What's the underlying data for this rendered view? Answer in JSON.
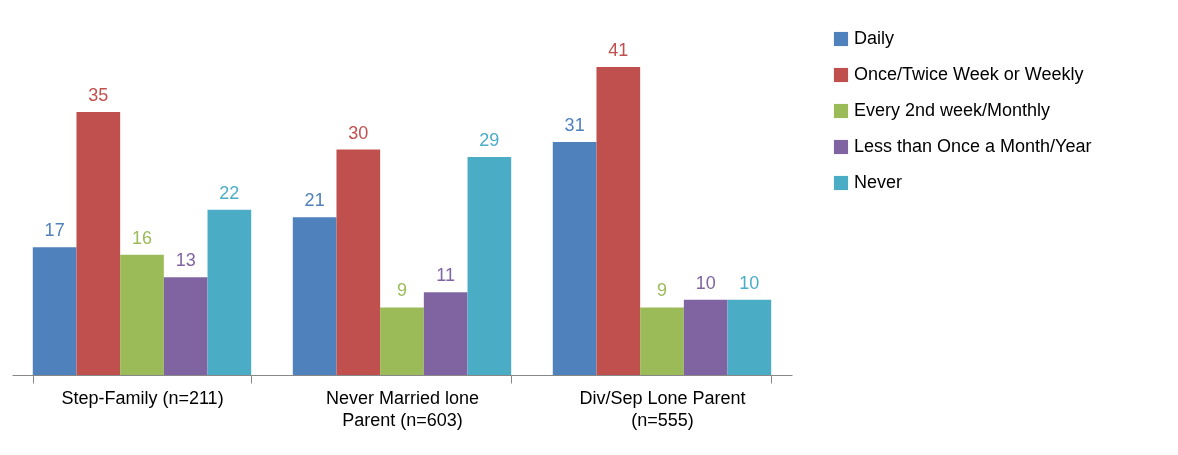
{
  "chart_data": {
    "type": "bar",
    "categories": [
      "Step-Family (n=211)",
      "Never Married lone Parent (n=603)",
      "Div/Sep Lone Parent (n=555)"
    ],
    "series": [
      {
        "name": "Daily",
        "color": "#4f81bd",
        "values": [
          17,
          21,
          31
        ]
      },
      {
        "name": "Once/Twice Week or Weekly",
        "color": "#c0504d",
        "values": [
          35,
          30,
          41
        ]
      },
      {
        "name": "Every 2nd week/Monthly",
        "color": "#9bbb59",
        "values": [
          16,
          9,
          9
        ]
      },
      {
        "name": "Less than Once a Month/Year",
        "color": "#8064a2",
        "values": [
          13,
          11,
          10
        ]
      },
      {
        "name": "Never",
        "color": "#4bacc6",
        "values": [
          22,
          29,
          10
        ]
      }
    ],
    "data_labels": true,
    "grid": false,
    "legend": "right"
  }
}
